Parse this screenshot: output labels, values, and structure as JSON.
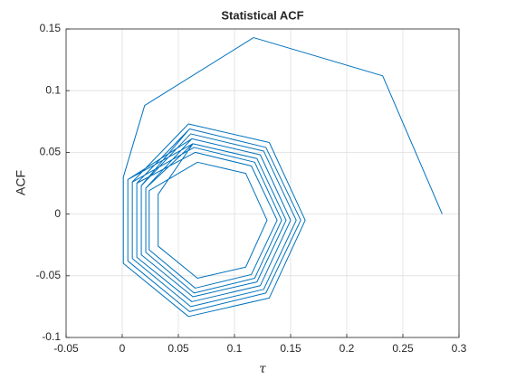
{
  "chart_data": {
    "type": "line",
    "title": "Statistical ACF",
    "xlabel": "τ",
    "ylabel": "ACF",
    "color": "#0072bd",
    "grid": true,
    "xlim": [
      -0.05,
      0.3
    ],
    "xticks": [
      -0.05,
      0,
      0.05,
      0.1,
      0.15,
      0.2,
      0.25,
      0.3
    ],
    "ylim": [
      -0.1,
      0.15
    ],
    "yticks": [
      -0.1,
      -0.05,
      0,
      0.05,
      0.1,
      0.15
    ],
    "x": [
      0.285,
      0.232,
      0.117,
      0.02,
      0.001,
      0.001,
      0.059,
      0.131,
      0.163,
      0.131,
      0.059,
      0.009,
      0.009,
      0.061,
      0.126,
      0.155,
      0.126,
      0.061,
      0.017,
      0.017,
      0.063,
      0.12,
      0.146,
      0.12,
      0.063,
      0.005,
      0.005,
      0.06,
      0.128,
      0.159,
      0.128,
      0.06,
      0.013,
      0.013,
      0.062,
      0.123,
      0.15,
      0.123,
      0.062,
      0.021,
      0.021,
      0.064,
      0.118,
      0.142,
      0.118,
      0.064,
      0.009,
      0.009,
      0.061,
      0.126,
      0.155,
      0.126,
      0.061,
      0.017,
      0.017,
      0.063,
      0.12,
      0.146,
      0.12,
      0.063,
      0.032,
      0.032,
      0.067,
      0.11,
      0.129,
      0.11,
      0.067,
      0.024,
      0.024,
      0.065,
      0.115,
      0.138,
      0.115,
      0.065,
      0.013,
      0.013,
      0.062,
      0.123,
      0.15,
      0.123,
      0.062,
      0.005,
      0.005,
      0.06,
      0.128,
      0.159,
      0.128,
      0.06,
      0.017,
      0.017,
      0.063,
      0.12,
      0.146,
      0.12,
      0.063,
      0.021,
      0.021,
      0.064,
      0.118,
      0.142,
      0.118,
      0.064,
      0.009,
      0.009,
      0.061,
      0.126,
      0.155,
      0.126,
      0.061
    ],
    "values": [
      0,
      0.112,
      0.143,
      0.088,
      0.03,
      -0.04,
      -0.083,
      -0.068,
      -0.005,
      0.058,
      0.073,
      0.026,
      -0.036,
      -0.075,
      -0.061,
      -0.005,
      0.051,
      0.065,
      0.023,
      -0.033,
      -0.067,
      -0.055,
      -0.005,
      0.045,
      0.057,
      0.028,
      -0.038,
      -0.079,
      -0.064,
      -0.005,
      0.054,
      0.069,
      0.025,
      -0.035,
      -0.071,
      -0.058,
      -0.005,
      0.048,
      0.061,
      0.021,
      -0.031,
      -0.064,
      -0.052,
      -0.005,
      0.042,
      0.054,
      0.026,
      -0.036,
      -0.075,
      -0.061,
      -0.005,
      0.051,
      0.065,
      0.023,
      -0.033,
      -0.067,
      -0.055,
      -0.005,
      0.045,
      0.057,
      0.016,
      -0.026,
      -0.052,
      -0.043,
      -0.005,
      0.033,
      0.042,
      0.019,
      -0.029,
      -0.06,
      -0.049,
      -0.005,
      0.039,
      0.05,
      0.025,
      -0.035,
      -0.071,
      -0.058,
      -0.005,
      0.048,
      0.061,
      0.028,
      -0.038,
      -0.079,
      -0.064,
      -0.005,
      0.054,
      0.069,
      0.023,
      -0.033,
      -0.067,
      -0.055,
      -0.005,
      0.045,
      0.057,
      0.021,
      -0.031,
      -0.064,
      -0.052,
      -0.005,
      0.042,
      0.054,
      0.026,
      -0.036,
      -0.075,
      -0.061,
      -0.005,
      0.051,
      0.065
    ]
  }
}
